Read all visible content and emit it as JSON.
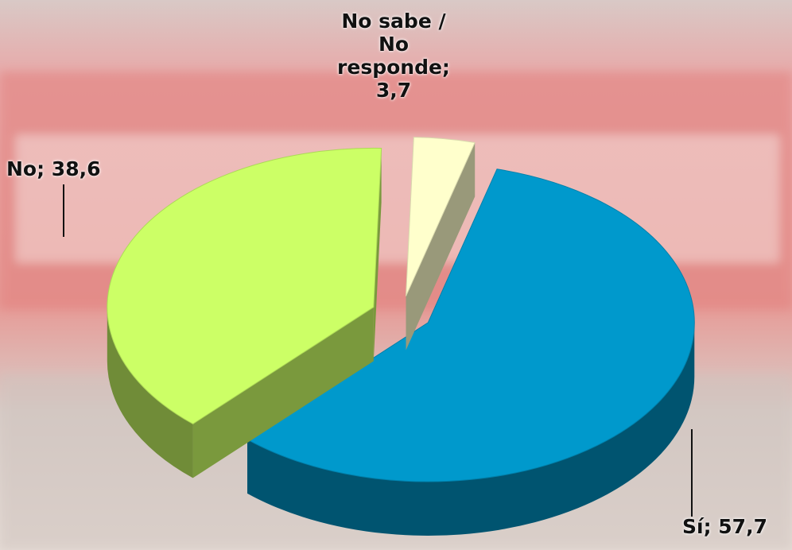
{
  "chart_data": {
    "type": "pie",
    "values": [
      57.7,
      38.6,
      3.7
    ],
    "value_labels": [
      "Sí; 57,7",
      "No; 38,6",
      "No sabe / No responde; 3,7"
    ],
    "colors": [
      "#0099cc",
      "#ccff66",
      "#ffffcc"
    ]
  }
}
